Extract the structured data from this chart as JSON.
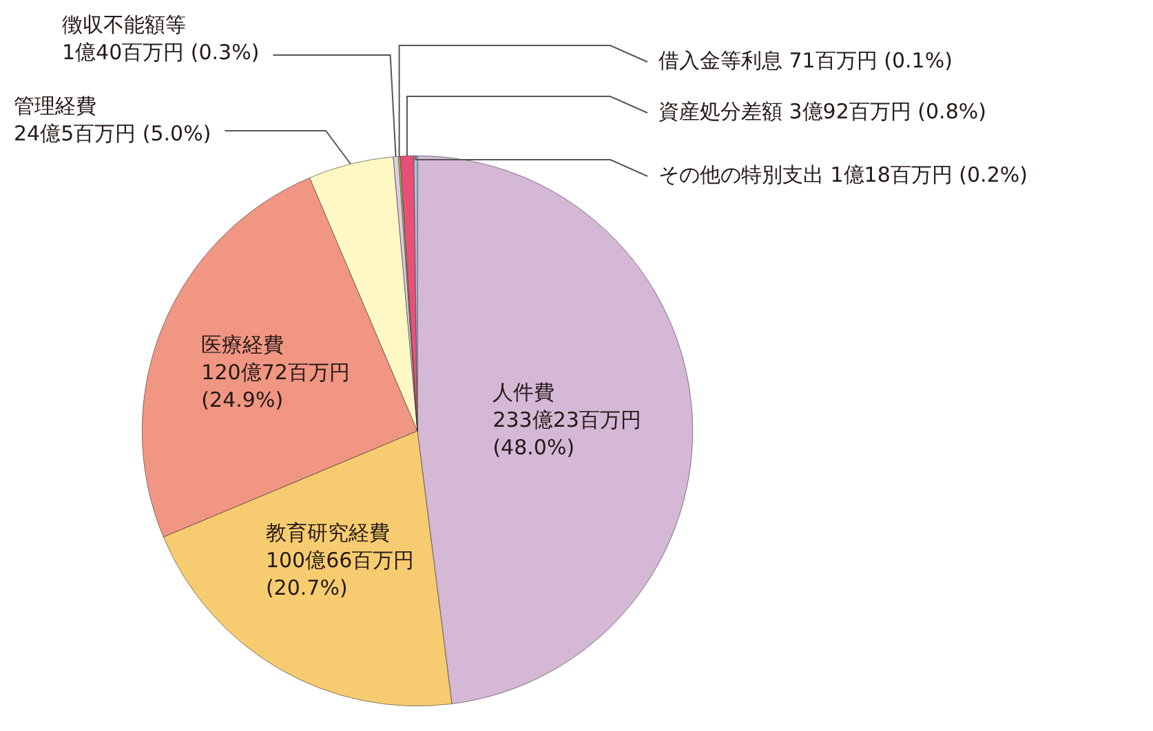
{
  "chart_data": {
    "type": "pie",
    "categories": [
      "人件費",
      "教育研究経費",
      "医療経費",
      "管理経費",
      "徴収不能額等",
      "借入金等利息",
      "資産処分差額",
      "その他の特別支出"
    ],
    "values": [
      48.0,
      20.7,
      24.9,
      5.0,
      0.3,
      0.1,
      0.8,
      0.2
    ],
    "colors": [
      "#d4b8d6",
      "#f7cc70",
      "#f09682",
      "#fef8c4",
      "#dccbe3",
      "#a8cc3c",
      "#e8507a",
      "#a8c8e0"
    ],
    "value_labels": [
      "233億23百万円 (48.0%)",
      "100億66百万円 (20.7%)",
      "120億72百万円 (24.9%)",
      "24億5百万円 (5.0%)",
      "1億40百万円 (0.3%)",
      "71百万円 (0.1%)",
      "3億92百万円 (0.8%)",
      "1億18百万円 (0.2%)"
    ],
    "legend": false
  }
}
